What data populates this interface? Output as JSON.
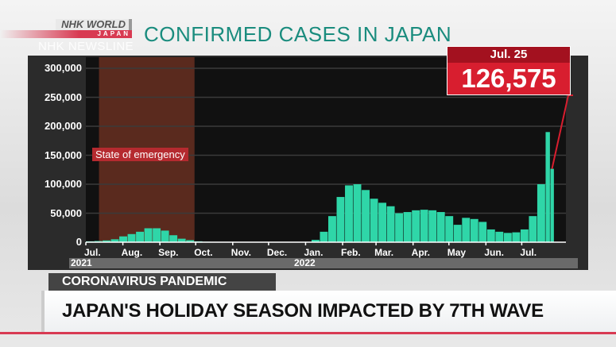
{
  "branding": {
    "logo_top": "NHK WORLD",
    "logo_bottom": "JAPAN",
    "program": "NHK NEWSLINE"
  },
  "title": "CONFIRMED CASES IN JAPAN",
  "callout": {
    "date": "Jul. 25",
    "value": "126,575"
  },
  "annotation": "State of emergency",
  "lower_third": {
    "tag": "CORONAVIRUS PANDEMIC",
    "headline": "JAPAN'S HOLIDAY SEASON IMPACTED BY 7TH WAVE"
  },
  "colors": {
    "bars": "#2fd6a8",
    "emergency_shade": "#5a2a1e",
    "callout": "#d81e2f",
    "title": "#1a8c7e"
  },
  "chart_data": {
    "type": "bar",
    "title": "CONFIRMED CASES IN JAPAN",
    "ylim": [
      0,
      300000
    ],
    "yticks": [
      0,
      50000,
      100000,
      150000,
      200000,
      250000,
      300000
    ],
    "ytick_labels": [
      "0",
      "50,000",
      "100,000",
      "150,000",
      "200,000",
      "250,000",
      "300,000"
    ],
    "xtick_labels": [
      {
        "label": "Jul.",
        "date": "2021-07-01"
      },
      {
        "label": "Aug.",
        "date": "2021-08-01"
      },
      {
        "label": "Sep.",
        "date": "2021-09-01"
      },
      {
        "label": "Oct.",
        "date": "2021-10-01"
      },
      {
        "label": "Nov.",
        "date": "2021-11-01"
      },
      {
        "label": "Dec.",
        "date": "2021-12-01"
      },
      {
        "label": "Jan.",
        "date": "2022-01-01"
      },
      {
        "label": "Feb.",
        "date": "2022-02-01"
      },
      {
        "label": "Mar.",
        "date": "2022-03-01"
      },
      {
        "label": "Apr.",
        "date": "2022-04-01"
      },
      {
        "label": "May",
        "date": "2022-05-01"
      },
      {
        "label": "Jun.",
        "date": "2022-06-01"
      },
      {
        "label": "Jul.",
        "date": "2022-07-01"
      }
    ],
    "years": [
      {
        "label": "2021",
        "date": "2021-07-01"
      },
      {
        "label": "2022",
        "date": "2022-01-01"
      }
    ],
    "xlim": [
      "2021-07-01",
      "2022-08-07"
    ],
    "shaded_period": {
      "label": "State of emergency",
      "start": "2021-07-12",
      "end": "2021-09-30"
    },
    "grid": true,
    "x": [
      "2021-07-01",
      "2021-07-08",
      "2021-07-15",
      "2021-07-22",
      "2021-07-29",
      "2021-08-05",
      "2021-08-12",
      "2021-08-19",
      "2021-08-26",
      "2021-09-02",
      "2021-09-09",
      "2021-09-16",
      "2021-09-23",
      "2021-09-30",
      "2021-10-07",
      "2021-10-14",
      "2021-10-21",
      "2021-10-28",
      "2021-11-04",
      "2021-11-11",
      "2021-11-18",
      "2021-11-25",
      "2021-12-02",
      "2021-12-09",
      "2021-12-16",
      "2021-12-23",
      "2021-12-30",
      "2022-01-06",
      "2022-01-13",
      "2022-01-20",
      "2022-01-27",
      "2022-02-03",
      "2022-02-10",
      "2022-02-17",
      "2022-02-24",
      "2022-03-03",
      "2022-03-10",
      "2022-03-17",
      "2022-03-24",
      "2022-03-31",
      "2022-04-07",
      "2022-04-14",
      "2022-04-21",
      "2022-04-28",
      "2022-05-05",
      "2022-05-12",
      "2022-05-19",
      "2022-05-26",
      "2022-06-02",
      "2022-06-09",
      "2022-06-16",
      "2022-06-23",
      "2022-06-30",
      "2022-07-07",
      "2022-07-14",
      "2022-07-21",
      "2022-07-25"
    ],
    "values": [
      1500,
      2000,
      3000,
      5000,
      10000,
      14000,
      18000,
      24000,
      24000,
      20000,
      12000,
      6000,
      3500,
      1500,
      800,
      600,
      400,
      300,
      250,
      200,
      150,
      150,
      120,
      150,
      180,
      250,
      500,
      4000,
      18000,
      45000,
      78000,
      98000,
      100000,
      90000,
      75000,
      68000,
      62000,
      50000,
      52000,
      55000,
      56000,
      55000,
      52000,
      45000,
      30000,
      42000,
      40000,
      35000,
      22000,
      18000,
      16000,
      17000,
      22000,
      45000,
      100000,
      190000,
      126575
    ]
  }
}
